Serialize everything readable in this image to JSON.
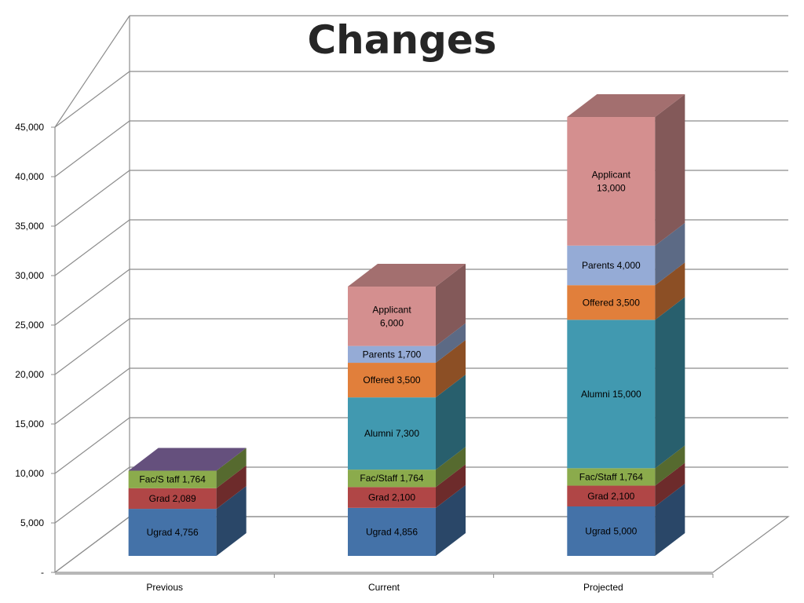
{
  "chart_data": {
    "type": "bar",
    "stacked": true,
    "three_d": true,
    "title": "Changes",
    "categories": [
      "Previous",
      "Current",
      "Projected"
    ],
    "ylim": [
      0,
      45000
    ],
    "y_ticks": [
      "-",
      "5,000",
      "10,000",
      "15,000",
      "20,000",
      "25,000",
      "30,000",
      "35,000",
      "40,000",
      "45,000"
    ],
    "grid": true,
    "series": [
      {
        "name": "Ugrad",
        "color": "#4472a8",
        "values": [
          4756,
          4856,
          5000
        ],
        "labels": [
          "Ugrad  4,756",
          "Ugrad  4,856",
          "Ugrad  5,000"
        ]
      },
      {
        "name": "Grad",
        "color": "#b04646",
        "values": [
          2089,
          2100,
          2100
        ],
        "labels": [
          "Grad  2,089",
          "Grad  2,100",
          "Grad  2,100"
        ]
      },
      {
        "name": "Fac/Staff",
        "color": "#8bab4c",
        "values": [
          1764,
          1764,
          1764
        ],
        "labels": [
          "Fac/S taff 1,764",
          "Fac/Staff  1,764",
          "Fac/Staff  1,764"
        ]
      },
      {
        "name": "Alumni",
        "color": "#4199b0",
        "values": [
          0,
          7300,
          15000
        ],
        "labels": [
          "",
          "Alumni  7,300",
          "Alumni  15,000"
        ]
      },
      {
        "name": "Offered",
        "color": "#e17f3b",
        "values": [
          0,
          3500,
          3500
        ],
        "labels": [
          "",
          "Offered  3,500",
          "Offered  3,500"
        ]
      },
      {
        "name": "Parents",
        "color": "#95abd6",
        "values": [
          0,
          1700,
          4000
        ],
        "labels": [
          "",
          "Parents  1,700",
          "Parents  4,000"
        ]
      },
      {
        "name": "Applicant",
        "color": "#d48f8f",
        "values": [
          0,
          6000,
          13000
        ],
        "labels": [
          "",
          "Applicant|6,000",
          "Applicant|13,000"
        ]
      }
    ],
    "top_colors": [
      "#65507d",
      "#a36f6f",
      "#a36f6f"
    ]
  }
}
